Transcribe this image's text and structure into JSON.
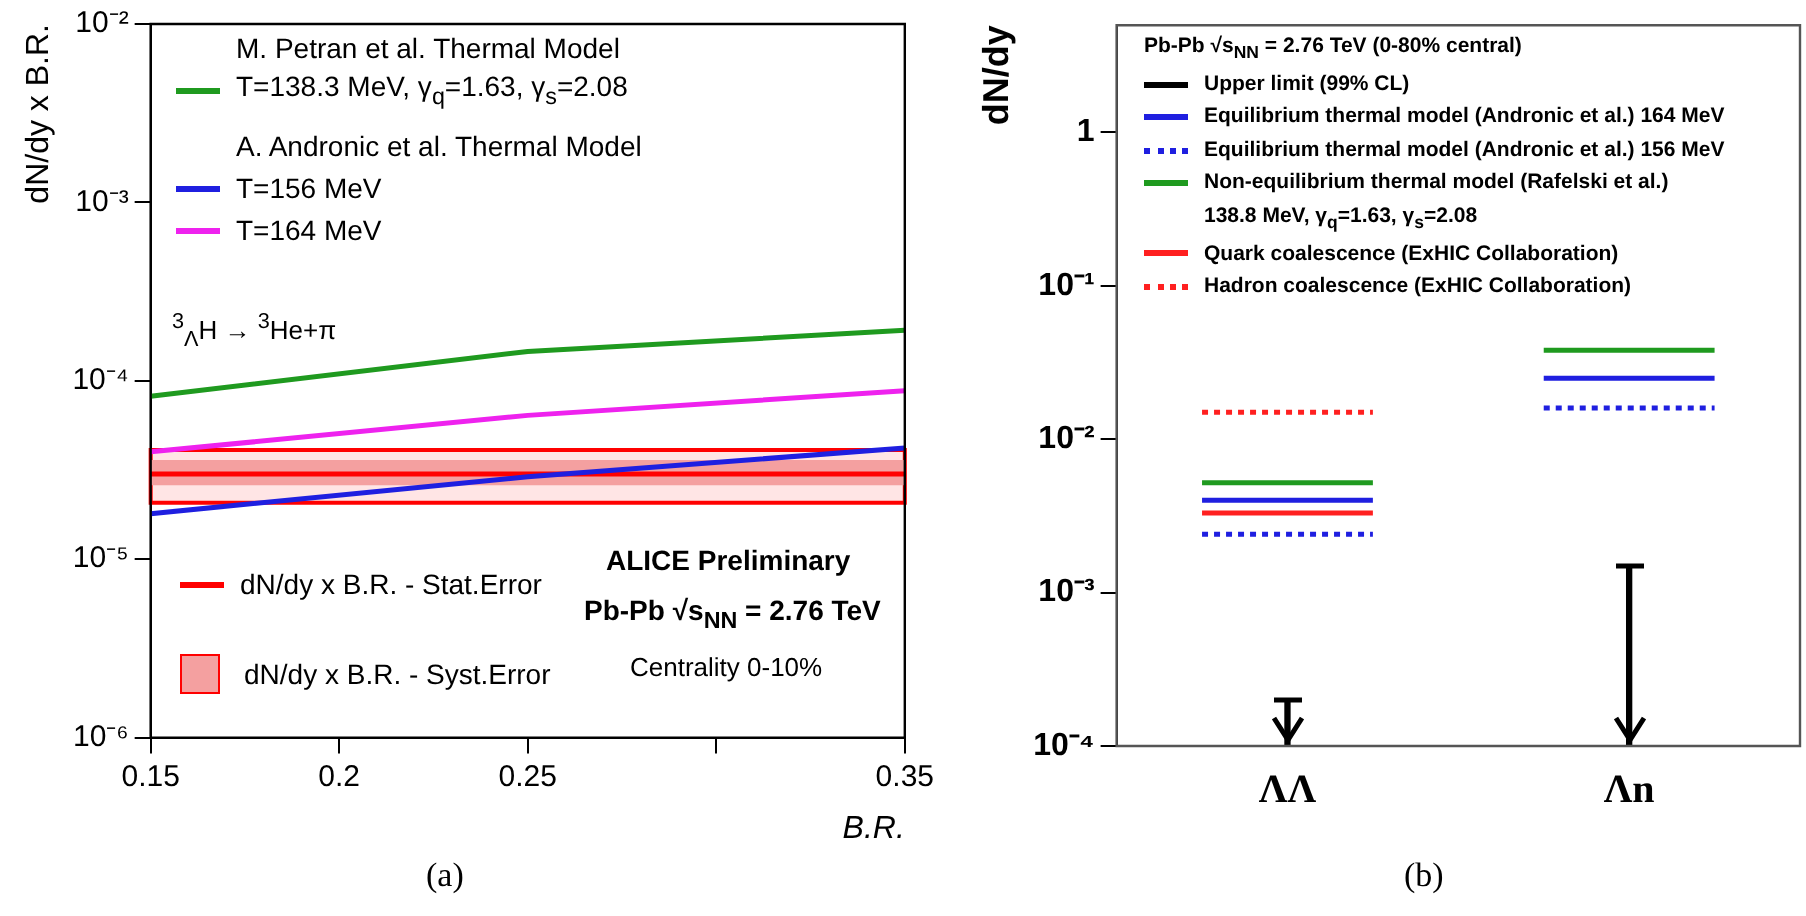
{
  "chart_data": [
    {
      "type": "line",
      "xlabel": "B.R.",
      "ylabel": "dN/dy x B.R.",
      "log": "y",
      "grid": false,
      "legend": "left",
      "legend_title": "M. Petran et al. Thermal Model",
      "xlim": [
        0.15,
        0.35
      ],
      "xticks": [
        0.15,
        0.2,
        0.25,
        {
          "value": 0.3,
          "label": null
        },
        0.35
      ],
      "ylim": [
        1e-06,
        0.01
      ],
      "yticks": [
        {
          "value": 1e-06,
          "label": "10⁻⁶"
        },
        {
          "value": 1e-05,
          "label": "10⁻⁵"
        },
        {
          "value": 0.0001,
          "label": "10⁻⁴"
        },
        {
          "value": 0.001,
          "label": "10⁻³"
        },
        {
          "value": 0.01,
          "label": "10⁻²"
        }
      ],
      "series": [
        {
          "name": "T=138.3 MeV, γ$_{q}$=1.63, γ$_{s}$=2.08",
          "color": "#1f9a1f",
          "x": [
            0.15,
            0.25,
            0.35
          ],
          "values": [
            8.2e-05,
            0.000146,
            0.000192
          ]
        },
        {
          "name": "T=156 MeV",
          "color": "#1f1fe0",
          "x": [
            0.15,
            0.25,
            0.35
          ],
          "values": [
            1.8e-05,
            2.9e-05,
            4.2e-05
          ]
        },
        {
          "name": "T=164 MeV",
          "color": "#ee22ee",
          "x": [
            0.15,
            0.25,
            0.35
          ],
          "values": [
            4e-05,
            6.4e-05,
            8.8e-05
          ]
        },
        {
          "name": "dN/dy x B.R. - Stat.Error",
          "color": "#ff0000",
          "x": [
            0.15,
            0.35
          ],
          "values": [
            3e-05,
            3e-05
          ],
          "lower": [
            2.07e-05,
            2.07e-05
          ],
          "upper": [
            4.1e-05,
            4.1e-05
          ]
        }
      ],
      "bands": [
        {
          "axis": "y",
          "from": 2.6e-05,
          "to": 3.6e-05,
          "label": "dN/dy x B.R. - Syst.Error",
          "color": "#f4a0a0"
        }
      ],
      "annotations": [
        "A. Andronic et al. Thermal Model",
        "$^{3}$$_{Λ}$H → $^{3}$He+π",
        "ALICE Preliminary",
        "Pb-Pb √s$_{NN}$ = 2.76 TeV",
        "Centrality 0-10%",
        "(a)"
      ]
    },
    {
      "type": "line",
      "ylabel": "dN/dy",
      "log": "y",
      "grid": false,
      "legend": "top left",
      "legend_title": "Pb-Pb √s$_{NN}$ = 2.76 TeV (0-80% central)",
      "categories": [
        null,
        null,
        "ΛΛ",
        null,
        null,
        null,
        "Λn",
        null,
        null
      ],
      "ylim": [
        0.0001,
        5
      ],
      "yticks": [
        {
          "value": 0.0001,
          "label": "10⁻⁴"
        },
        {
          "value": 0.001,
          "label": "10⁻³"
        },
        {
          "value": 0.01,
          "label": "10⁻²"
        },
        {
          "value": 0.1,
          "label": "10⁻¹"
        },
        1
      ],
      "series": [
        {
          "name": "Upper limit (99% CL)",
          "type": "bar",
          "color": "#000000",
          "values": [
            null,
            null,
            0.0002,
            null,
            null,
            null,
            0.0015,
            null,
            null
          ]
        },
        {
          "name": "Equilibrium thermal model (Andronic et al.) 164 MeV",
          "color": "#1f1fe0",
          "line_style": "solid",
          "values": [
            null,
            0.004,
            0.004,
            0.004,
            null,
            0.025,
            0.025,
            0.025,
            null
          ]
        },
        {
          "name": "Equilibrium thermal model (Andronic et al.) 156 MeV",
          "color": "#1f1fe0",
          "line_style": "dotted",
          "values": [
            null,
            0.0024,
            0.0024,
            0.0024,
            null,
            0.016,
            0.016,
            0.016,
            null
          ]
        },
        {
          "name": "Non-equilibrium thermal model (Rafelski et al.)\n138.8 MeV, γ$_{q}$=1.63, γ$_{s}$=2.08",
          "color": "#1f9a1f",
          "line_style": "solid",
          "values": [
            null,
            0.0052,
            0.0052,
            0.0052,
            null,
            0.038,
            0.038,
            0.038,
            null
          ]
        },
        {
          "name": "Quark coalescence (ExHIC Collaboration)",
          "color": "#ff2020",
          "line_style": "solid",
          "values": [
            null,
            0.0033,
            0.0033,
            0.0033,
            null,
            null,
            null,
            null,
            null
          ]
        },
        {
          "name": "Hadron coalescence (ExHIC Collaboration)",
          "color": "#ff2020",
          "line_style": "dotted",
          "values": [
            null,
            0.015,
            0.015,
            0.015,
            null,
            null,
            null,
            null,
            null
          ]
        }
      ],
      "annotations": [
        "(b)"
      ]
    }
  ]
}
